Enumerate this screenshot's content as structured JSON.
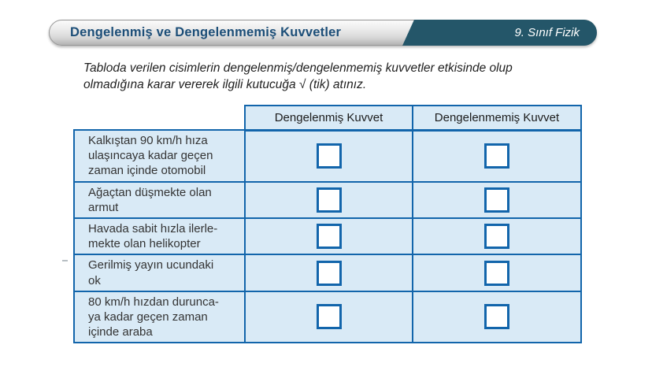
{
  "header": {
    "title": "Dengelenmiş ve Dengelenmemiş Kuvvetler",
    "badge": "9. Sınıf Fizik"
  },
  "instruction": "Tabloda verilen cisimlerin  dengelenmiş/dengelenmemiş kuvvetler etkisinde olup\nolmadığına karar vererek ilgili kutucuğa √ (tik) atınız.",
  "table": {
    "columns": [
      "Dengelenmiş Kuvvet",
      "Dengelenmemiş Kuvvet"
    ],
    "rows": [
      {
        "label": "Kalkıştan 90 km/h hıza\nulaşıncaya kadar geçen\nzaman içinde otomobil",
        "checked": [
          false,
          false
        ]
      },
      {
        "label": "Ağaçtan düşmekte olan\narmut",
        "checked": [
          false,
          false
        ]
      },
      {
        "label": "Havada sabit hızla ilerle-\nmekte olan helikopter",
        "checked": [
          false,
          false
        ]
      },
      {
        "label": "Gerilmiş yayın ucundaki\nok",
        "checked": [
          false,
          false
        ]
      },
      {
        "label": "80 km/h hızdan durunca-\nya kadar geçen zaman\niçinde araba",
        "checked": [
          false,
          false
        ]
      }
    ]
  },
  "colors": {
    "table_border": "#1265ab",
    "cell_background": "#d9eaf6",
    "banner_teal": "#245669",
    "title_blue": "#1c4e78"
  }
}
